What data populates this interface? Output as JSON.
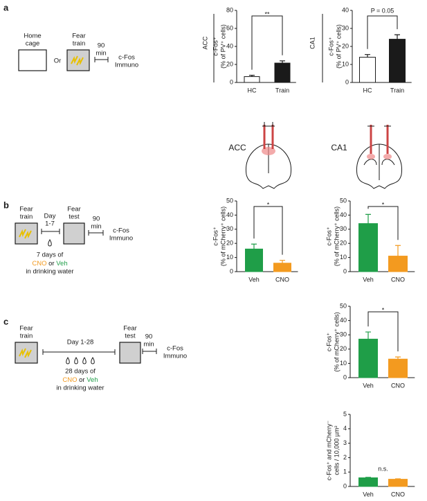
{
  "panels": {
    "a": "a",
    "b": "b",
    "c": "c"
  },
  "diagrams": {
    "a": {
      "home": [
        "Home",
        "cage"
      ],
      "or": "Or",
      "train": [
        "Fear",
        "train"
      ],
      "time": [
        "90",
        "min"
      ],
      "immuno": [
        "c-Fos",
        "Immuno"
      ]
    },
    "b": {
      "train": [
        "Fear",
        "train"
      ],
      "day": [
        "Day",
        "1-7"
      ],
      "test": [
        "Fear",
        "test"
      ],
      "time": [
        "90",
        "min"
      ],
      "immuno": [
        "c-Fos",
        "Immuno"
      ],
      "note": [
        "7 days of",
        "CNO",
        "or",
        "Veh",
        "in drinking water"
      ]
    },
    "c": {
      "train": [
        "Fear",
        "train"
      ],
      "day": "Day 1-28",
      "test": [
        "Fear",
        "test"
      ],
      "time": [
        "90",
        "min"
      ],
      "immuno": [
        "c-Fos",
        "Immuno"
      ],
      "note": [
        "28 days of",
        "CNO",
        "or",
        "Veh",
        "in drinking water"
      ]
    },
    "brains": [
      "ACC",
      "CA1"
    ]
  },
  "chart_data": [
    {
      "type": "bar",
      "label": "ACC",
      "y_label": [
        "c-Fos⁺",
        "(% of PV⁺ cells)"
      ],
      "categories": [
        "HC",
        "Train"
      ],
      "values": [
        6.5,
        21.5
      ],
      "errors": [
        1.5,
        2.5
      ],
      "colors": [
        "#ffffff",
        "#1a1a1a"
      ],
      "label_colors": [
        "#1a1a1a",
        "#1a1a1a"
      ],
      "ylim": [
        0,
        80
      ],
      "yticks": [
        0,
        20,
        40,
        60,
        80
      ],
      "annotation": "**"
    },
    {
      "type": "bar",
      "label": "CA1",
      "y_label": [
        "c-Fos⁺",
        "(% of PV⁺ cells)"
      ],
      "categories": [
        "HC",
        "Train"
      ],
      "values": [
        14,
        24
      ],
      "errors": [
        1.5,
        2.5
      ],
      "colors": [
        "#ffffff",
        "#1a1a1a"
      ],
      "label_colors": [
        "#1a1a1a",
        "#1a1a1a"
      ],
      "ylim": [
        0,
        40
      ],
      "yticks": [
        0,
        10,
        20,
        30,
        40
      ],
      "annotation": "P = 0.05"
    },
    {
      "type": "bar",
      "y_label": [
        "c-Fos⁺",
        "(% of mCherry⁺ cells)"
      ],
      "categories": [
        "Veh",
        "CNO"
      ],
      "values": [
        16,
        6
      ],
      "errors": [
        3.5,
        2
      ],
      "colors": [
        "#1f9e48",
        "#f39a1f"
      ],
      "label_colors": [
        "#1f9e48",
        "#f39a1f"
      ],
      "ylim": [
        0,
        50
      ],
      "yticks": [
        0,
        10,
        20,
        30,
        40,
        50
      ],
      "annotation": "*"
    },
    {
      "type": "bar",
      "y_label": [
        "c-Fos⁺",
        "(% of mCherry⁺ cells)"
      ],
      "categories": [
        "Veh",
        "CNO"
      ],
      "values": [
        34,
        11
      ],
      "errors": [
        6.5,
        7.5
      ],
      "colors": [
        "#1f9e48",
        "#f39a1f"
      ],
      "label_colors": [
        "#1f9e48",
        "#f39a1f"
      ],
      "ylim": [
        0,
        50
      ],
      "yticks": [
        0,
        10,
        20,
        30,
        40,
        50
      ],
      "annotation": "*"
    },
    {
      "type": "bar",
      "y_label": [
        "c-Fos⁺",
        "(% of mCherry⁺ cells)"
      ],
      "categories": [
        "Veh",
        "CNO"
      ],
      "values": [
        27,
        13
      ],
      "errors": [
        5,
        1.5
      ],
      "colors": [
        "#1f9e48",
        "#f39a1f"
      ],
      "label_colors": [
        "#1f9e48",
        "#f39a1f"
      ],
      "ylim": [
        0,
        50
      ],
      "yticks": [
        0,
        10,
        20,
        30,
        40,
        50
      ],
      "annotation": "*"
    },
    {
      "type": "bar",
      "y_label": [
        "c-Fos⁺ and mCherry⁻",
        "cells / 10,000 µm²"
      ],
      "categories": [
        "Veh",
        "CNO"
      ],
      "values": [
        0.6,
        0.5
      ],
      "errors": [
        0.03,
        0.03
      ],
      "colors": [
        "#1f9e48",
        "#f39a1f"
      ],
      "label_colors": [
        "#1f9e48",
        "#f39a1f"
      ],
      "ylim": [
        0,
        5
      ],
      "yticks": [
        0,
        1,
        2,
        3,
        4,
        5
      ],
      "annotation": "n.s.",
      "bracket": false
    }
  ]
}
